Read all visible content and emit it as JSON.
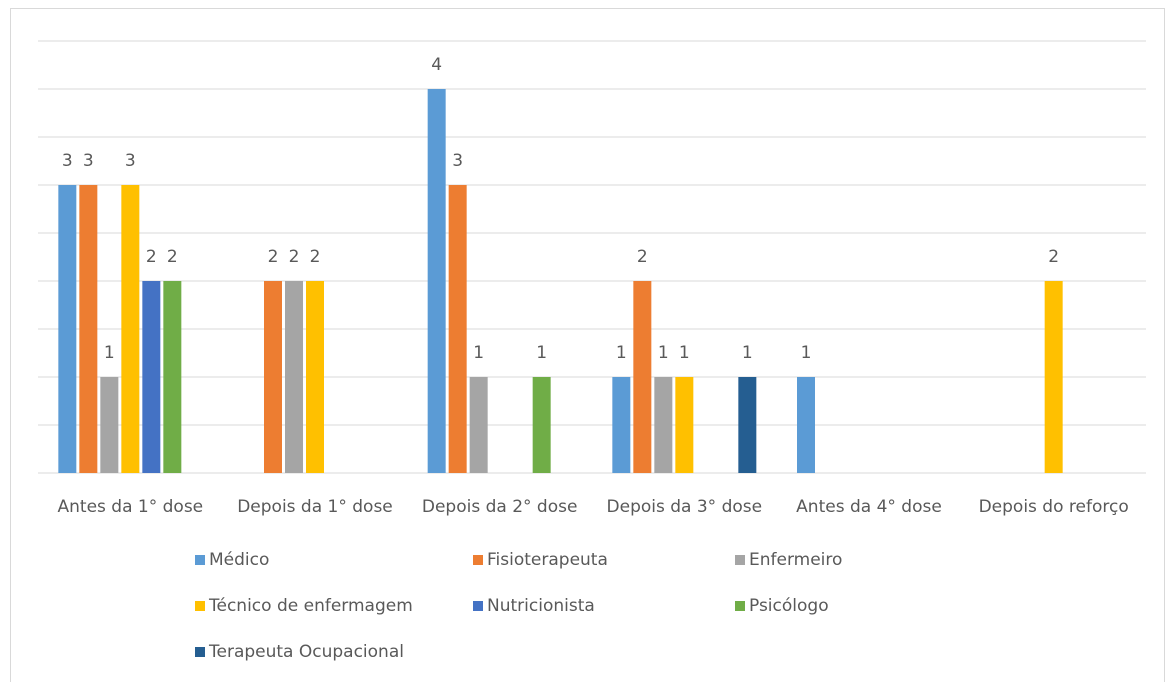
{
  "chart_data": {
    "type": "bar",
    "categories": [
      "Antes da 1° dose",
      "Depois da 1° dose",
      "Depois da 2° dose",
      "Depois da 3° dose",
      "Antes da 4° dose",
      "Depois do reforço"
    ],
    "series": [
      {
        "name": "Médico",
        "color": "#5b9bd5",
        "values": [
          3,
          null,
          4,
          1,
          1,
          null
        ]
      },
      {
        "name": "Fisioterapeuta",
        "color": "#ed7d31",
        "values": [
          3,
          2,
          3,
          2,
          null,
          null
        ]
      },
      {
        "name": "Enfermeiro",
        "color": "#a5a5a5",
        "values": [
          1,
          2,
          1,
          1,
          null,
          null
        ]
      },
      {
        "name": "Técnico de enfermagem",
        "color": "#ffc000",
        "values": [
          3,
          2,
          null,
          1,
          null,
          2
        ]
      },
      {
        "name": "Nutricionista",
        "color": "#4472c4",
        "values": [
          2,
          null,
          null,
          null,
          null,
          null
        ]
      },
      {
        "name": "Psicólogo",
        "color": "#70ad47",
        "values": [
          2,
          null,
          1,
          null,
          null,
          null
        ]
      },
      {
        "name": "Terapeuta Ocupacional",
        "color": "#255e91",
        "values": [
          null,
          null,
          null,
          1,
          null,
          null
        ]
      }
    ],
    "ylim": [
      0,
      4.5
    ],
    "yticks": [
      0,
      0.5,
      1,
      1.5,
      2,
      2.5,
      3,
      3.5,
      4,
      4.5
    ],
    "ytick_labels": false,
    "grid": true,
    "legend": "bottom",
    "data_labels": true
  }
}
